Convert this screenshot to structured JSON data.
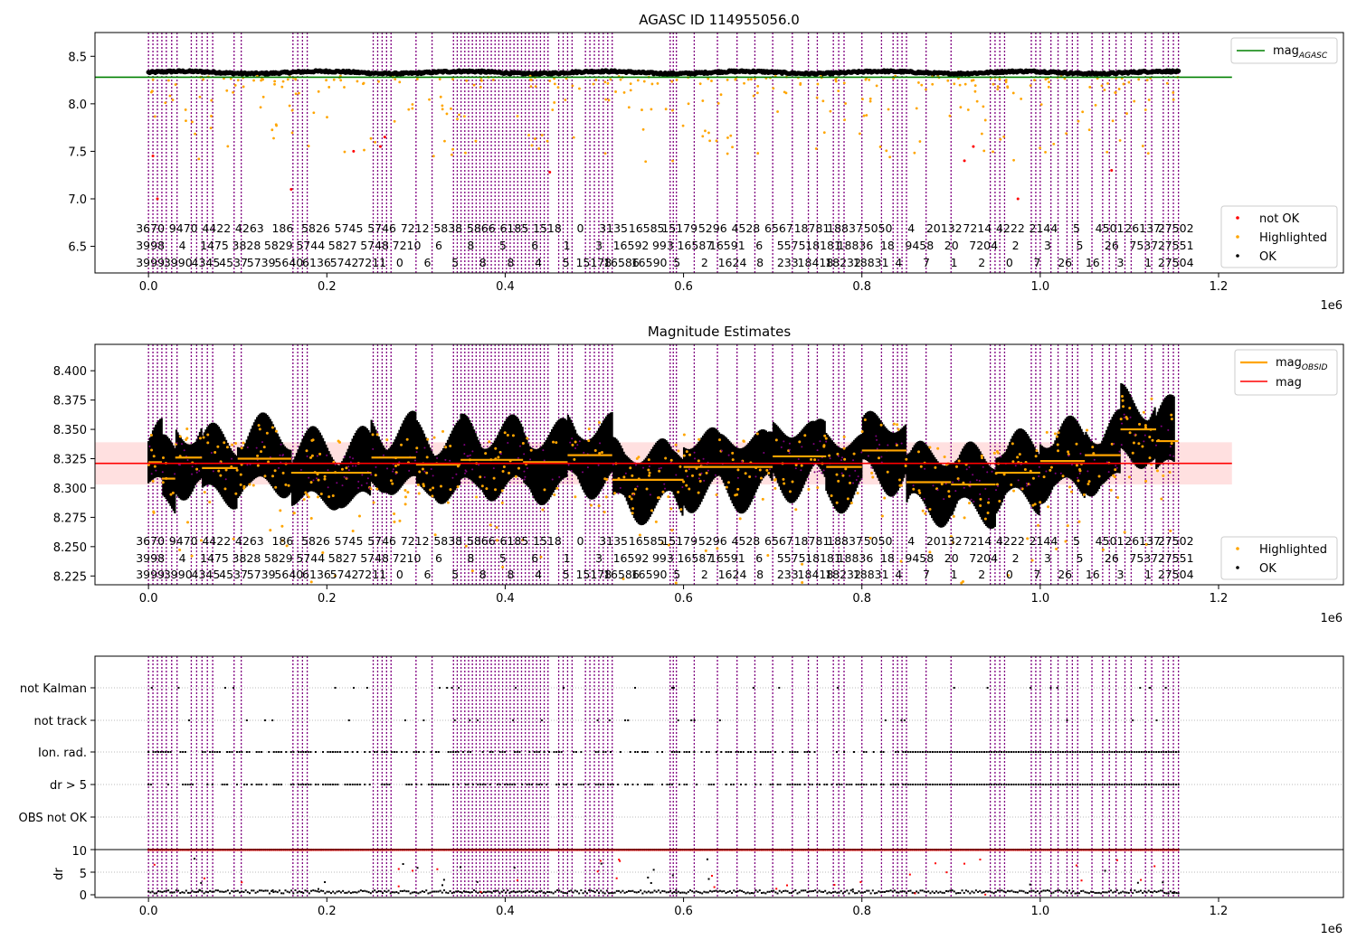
{
  "figure": {
    "panels": [
      {
        "id": "top",
        "title": "AGASC ID 114955056.0",
        "x_multiplier": "1e6",
        "x_ticks": [
          "0.0",
          "0.2",
          "0.4",
          "0.6",
          "0.8",
          "1.0",
          "1.2"
        ],
        "y_ticks": [
          "6.5",
          "7.0",
          "7.5",
          "8.0",
          "8.5"
        ],
        "legend_upper": [
          {
            "label": "mag",
            "sub": "AGASC",
            "color": "#008000",
            "kind": "line"
          }
        ],
        "legend_lower": [
          {
            "label": "not OK",
            "color": "#ff0000",
            "kind": "dot"
          },
          {
            "label": "Highlighted",
            "color": "#ffa500",
            "kind": "dot"
          },
          {
            "label": "OK",
            "color": "#000000",
            "kind": "dot"
          }
        ]
      },
      {
        "id": "middle",
        "title": "Magnitude Estimates",
        "x_multiplier": "1e6",
        "x_ticks": [
          "0.0",
          "0.2",
          "0.4",
          "0.6",
          "0.8",
          "1.0",
          "1.2"
        ],
        "y_ticks": [
          "8.225",
          "8.250",
          "8.275",
          "8.300",
          "8.325",
          "8.350",
          "8.375",
          "8.400"
        ],
        "legend_upper": [
          {
            "label": "mag",
            "sub": "OBSID",
            "color": "#ffa500",
            "kind": "line"
          },
          {
            "label": "mag",
            "sub": "",
            "color": "#ff0000",
            "kind": "line"
          }
        ],
        "legend_lower": [
          {
            "label": "Highlighted",
            "color": "#ffa500",
            "kind": "dot"
          },
          {
            "label": "OK",
            "color": "#000000",
            "kind": "dot"
          }
        ]
      },
      {
        "id": "flags",
        "x_multiplier": "1e6",
        "x_ticks": [
          "0.0",
          "0.2",
          "0.4",
          "0.6",
          "0.8",
          "1.0",
          "1.2"
        ],
        "flag_labels": [
          "not Kalman",
          "not track",
          "Ion. rad.",
          "dr > 5",
          "OBS not OK"
        ],
        "dr_label": "dr",
        "dr_ticks": [
          "0",
          "5",
          "10"
        ]
      }
    ]
  },
  "chart_data": [
    {
      "type": "scatter",
      "title": "AGASC ID 114955056.0",
      "xlim": [
        -60000,
        1340000
      ],
      "ylim": [
        6.22,
        8.75
      ],
      "mag_agasc": 8.28,
      "series": [
        {
          "name": "not OK",
          "color": "#ff0000",
          "sample_points": [
            [
              5000,
              7.45
            ],
            [
              10000,
              7.0
            ],
            [
              160000,
              7.1
            ],
            [
              230000,
              7.5
            ],
            [
              260000,
              7.55
            ],
            [
              265000,
              7.65
            ],
            [
              450000,
              7.28
            ],
            [
              915000,
              7.4
            ],
            [
              925000,
              7.55
            ],
            [
              975000,
              7.0
            ],
            [
              1080000,
              7.3
            ]
          ]
        },
        {
          "name": "Highlighted",
          "color": "#ffa500",
          "mean_level": 8.27
        },
        {
          "name": "OK",
          "color": "#000000",
          "mean_level": 8.33
        }
      ],
      "obsid_labels_row1": [
        "3670",
        "9470",
        "4422",
        "4263",
        "186",
        "5826",
        "5745",
        "5746",
        "7212",
        "5838",
        "5866",
        "6185",
        "1518",
        "0",
        "3135",
        "16585",
        "15179",
        "5296",
        "4528",
        "6567",
        "18781",
        "18837",
        "5050",
        "4",
        "20132",
        "7214",
        "4222",
        "2144",
        "5",
        "4501",
        "26137",
        "27502"
      ],
      "obsid_labels_row2": [
        "3998",
        "4",
        "1475",
        "3828",
        "5829",
        "5744",
        "5827",
        "5748",
        "7210",
        "6",
        "8",
        "5",
        "6",
        "1",
        "3",
        "16592",
        "993",
        "16587",
        "16591",
        "6",
        "5575",
        "18181",
        "18836",
        "18",
        "9458",
        "20",
        "7204",
        "2",
        "3",
        "5",
        "26",
        "7537",
        "27551"
      ],
      "obsid_labels_row3": [
        "3999",
        "3990",
        "4345",
        "4537",
        "5739",
        "5640",
        "6136",
        "5742",
        "7211",
        "0",
        "6",
        "5",
        "8",
        "8",
        "4",
        "5",
        "15178",
        "16586",
        "16590",
        "5",
        "2",
        "1624",
        "8",
        "233",
        "18418",
        "18232",
        "18831",
        "4",
        "7",
        "1",
        "2",
        "0",
        "7",
        "26",
        "16",
        "3",
        "1",
        "27504"
      ]
    },
    {
      "type": "scatter",
      "title": "Magnitude Estimates",
      "xlim": [
        -60000,
        1340000
      ],
      "ylim": [
        8.2175,
        8.4225
      ],
      "mag": 8.321,
      "mag_band": [
        8.303,
        8.339
      ],
      "mag_obsid_segments": [
        [
          0,
          15000,
          8.322
        ],
        [
          15000,
          30000,
          8.308
        ],
        [
          30000,
          60000,
          8.326
        ],
        [
          60000,
          100000,
          8.317
        ],
        [
          100000,
          160000,
          8.325
        ],
        [
          160000,
          250000,
          8.313
        ],
        [
          250000,
          300000,
          8.326
        ],
        [
          300000,
          350000,
          8.32
        ],
        [
          350000,
          420000,
          8.324
        ],
        [
          420000,
          470000,
          8.322
        ],
        [
          470000,
          520000,
          8.328
        ],
        [
          520000,
          600000,
          8.307
        ],
        [
          600000,
          700000,
          8.318
        ],
        [
          700000,
          760000,
          8.327
        ],
        [
          760000,
          800000,
          8.318
        ],
        [
          800000,
          850000,
          8.332
        ],
        [
          850000,
          900000,
          8.305
        ],
        [
          900000,
          950000,
          8.303
        ],
        [
          950000,
          1000000,
          8.313
        ],
        [
          1000000,
          1050000,
          8.323
        ],
        [
          1050000,
          1090000,
          8.328
        ],
        [
          1090000,
          1130000,
          8.35
        ],
        [
          1130000,
          1155000,
          8.34
        ]
      ],
      "series": [
        {
          "name": "Highlighted",
          "color": "#ffa500"
        },
        {
          "name": "OK",
          "color": "#000000"
        }
      ]
    },
    {
      "type": "scatter",
      "xlim": [
        -60000,
        1340000
      ],
      "flags": [
        "not Kalman",
        "not track",
        "Ion. rad.",
        "dr > 5",
        "OBS not OK"
      ],
      "dr_ylim": [
        -0.5,
        10.5
      ],
      "dr_threshold": 10
    }
  ]
}
